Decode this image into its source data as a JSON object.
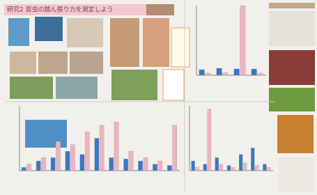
{
  "poster": {
    "title": "研究2 昆虫の踏ん張り力を測定しよう",
    "charts": [
      {
        "ylim": [
          0,
          100
        ],
        "series": [
          {
            "color": "#3a78c2",
            "values": [
              8,
              10,
              9,
              9
            ]
          },
          {
            "color": "#eeb3bf",
            "values": [
              3,
              4,
              100,
              3
            ]
          }
        ]
      },
      {
        "ylim": [
          0,
          100
        ],
        "series": [
          {
            "color": "#3a78c2",
            "values": [
              5,
              15,
              20,
              30,
              25,
              50,
              20,
              18,
              15,
              10,
              8
            ]
          },
          {
            "color": "#eeb3bf",
            "values": [
              10,
              20,
              45,
              40,
              60,
              70,
              75,
              30,
              20,
              15,
              70
            ]
          }
        ]
      },
      {
        "ylim": [
          0,
          100
        ],
        "series": [
          {
            "color": "#3a78c2",
            "values": [
              15,
              10,
              20,
              8,
              25,
              35,
              10
            ]
          },
          {
            "color": "#eeb3bf",
            "values": [
              5,
              95,
              10,
              5,
              12,
              8,
              5
            ]
          }
        ]
      }
    ]
  }
}
